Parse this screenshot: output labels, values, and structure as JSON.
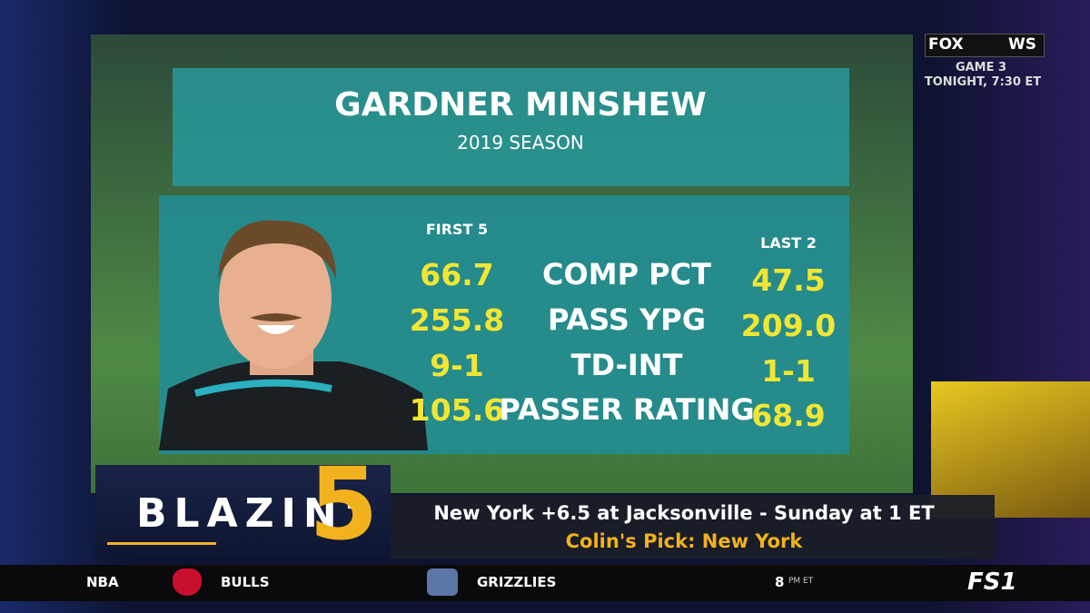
{
  "header": {
    "title": "GARDNER MINSHEW",
    "subtitle": "2019 SEASON"
  },
  "table": {
    "columns": [
      "FIRST 5",
      "LAST 2"
    ],
    "rows": [
      [
        "66.7",
        "COMP PCT",
        "47.5"
      ],
      [
        "255.8",
        "PASS YPG",
        "209.0"
      ],
      [
        "9-1",
        "TD-INT",
        "1-1"
      ],
      [
        "105.6",
        "PASSER RATING",
        "68.9"
      ]
    ]
  },
  "segment": {
    "name": "BLAZIN'",
    "number": "5"
  },
  "pick": {
    "game": "New York +6.5 at Jacksonville - Sunday at 1 ET",
    "pick": "Colin's Pick: New York"
  },
  "promo": {
    "network": "FOX",
    "event": "WS",
    "line1": "GAME 3",
    "line2": "TONIGHT, 7:30 ET"
  },
  "ticker": {
    "league": "NBA",
    "team1": "BULLS",
    "team2": "GRIZZLIES",
    "time": "8",
    "time_suffix": "PM ET",
    "channel": "FS1"
  }
}
